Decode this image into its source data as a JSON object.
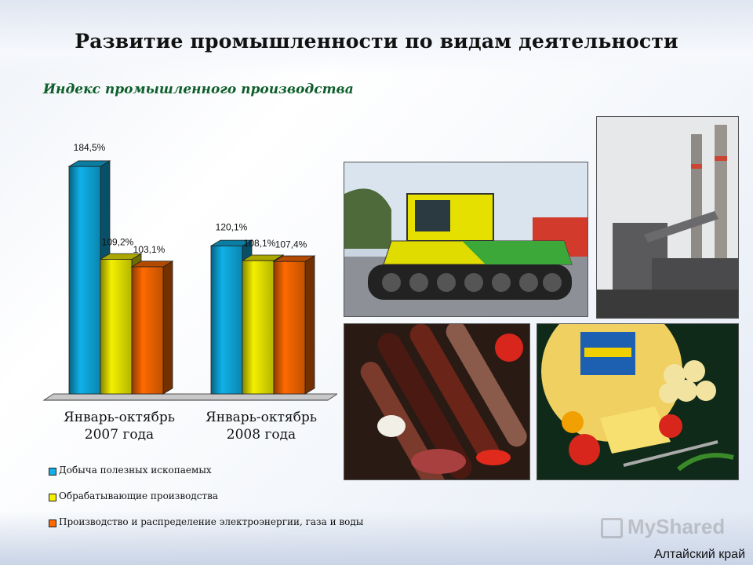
{
  "slide": {
    "title": "Развитие промышленности по видам деятельности",
    "subtitle": "Индекс промышленного производства",
    "footer_region": "Алтайский край",
    "watermark": "MyShared"
  },
  "photos": [
    {
      "name": "tractor-photo"
    },
    {
      "name": "factory-photo"
    },
    {
      "name": "sausage-photo"
    },
    {
      "name": "cheese-photo"
    }
  ],
  "chart_data": {
    "type": "bar",
    "title": "Индекс промышленного производства",
    "categories": [
      "Январь-октябрь\n2007 года",
      "Январь-октябрь\n2008 года"
    ],
    "series": [
      {
        "name": "Добыча полезных ископаемых",
        "values": [
          184.5,
          120.1
        ],
        "labels": [
          "184,5%",
          "120,1%"
        ],
        "color": "#0fb1e8"
      },
      {
        "name": "Обрабатывающие производства",
        "values": [
          109.2,
          108.1
        ],
        "labels": [
          "109,2%",
          "108,1%"
        ],
        "color": "#f3f000"
      },
      {
        "name": "Производство и распределение электроэнергии, газа и воды",
        "values": [
          103.1,
          107.4
        ],
        "labels": [
          "103,1%",
          "107,4%"
        ],
        "color": "#ff6a00"
      }
    ],
    "ylim": [
      0,
      190
    ],
    "grid": false,
    "legend_position": "bottom"
  }
}
